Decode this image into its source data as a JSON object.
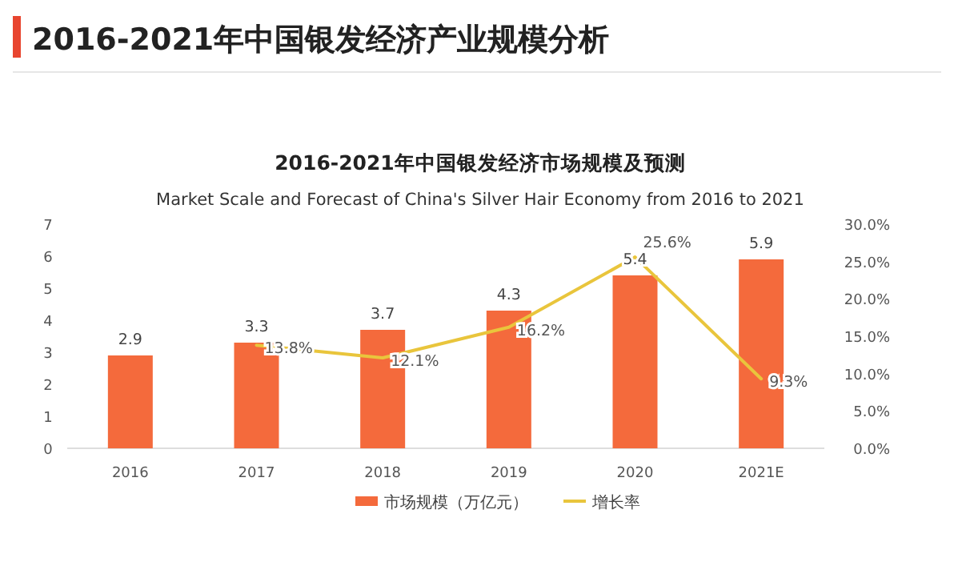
{
  "chart_data": {
    "type": "bar",
    "title": "2016-2021年中国银发经济产业规模分析",
    "subtitle": "2016-2021年中国银发经济市场规模及预测",
    "annotations": [
      "Market Scale and Forecast of China's Silver Hair Economy from 2016 to 2021"
    ],
    "categories": [
      "2016",
      "2017",
      "2018",
      "2019",
      "2020",
      "2021E"
    ],
    "series": [
      {
        "name": "市场规模（万亿元）",
        "color": "#f46a3c",
        "values": [
          2.9,
          3.3,
          3.7,
          4.3,
          5.4,
          5.9
        ],
        "value_labels": [
          "2.9",
          "3.3",
          "3.7",
          "4.3",
          "5.4",
          "5.9"
        ]
      },
      {
        "name": "增长率",
        "type": "line",
        "axis": "y2",
        "color": "#e9c53c",
        "values": [
          null,
          13.8,
          12.1,
          16.2,
          25.6,
          9.3
        ],
        "value_labels": [
          null,
          "13.8%",
          "12.1%",
          "16.2%",
          "25.6%",
          "9.3%"
        ]
      }
    ],
    "ylim": [
      0,
      7
    ],
    "yticks": [
      0,
      1,
      2,
      3,
      4,
      5,
      6,
      7
    ],
    "y2lim": [
      0,
      30
    ],
    "y2ticks": [
      {
        "value": 0,
        "label": "0.0%"
      },
      {
        "value": 5,
        "label": "5.0%"
      },
      {
        "value": 10,
        "label": "10.0%"
      },
      {
        "value": 15,
        "label": "15.0%"
      },
      {
        "value": 20,
        "label": "20.0%"
      },
      {
        "value": 25,
        "label": "25.0%"
      },
      {
        "value": 30,
        "label": "30.0%"
      }
    ],
    "grid": false,
    "legend": "bottom",
    "marker": "none",
    "line_style": "solid"
  }
}
